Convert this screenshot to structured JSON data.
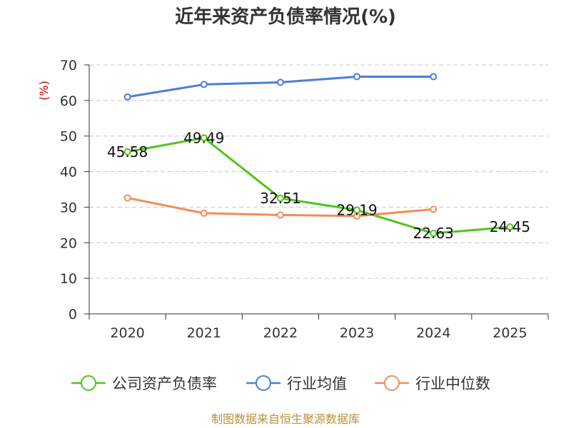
{
  "chart_data": {
    "type": "line",
    "title": "近年来资产负债率情况(%)",
    "ylabel": "(%)",
    "xlabel": "",
    "categories": [
      "2020",
      "2021",
      "2022",
      "2023",
      "2024",
      "2025"
    ],
    "ylim": [
      0,
      70
    ],
    "yticks": [
      "0",
      "10",
      "20",
      "30",
      "40",
      "50",
      "60",
      "70"
    ],
    "grid": true,
    "legend_position": "bottom",
    "series": [
      {
        "name": "公司资产负债率",
        "color": "#52c41a",
        "values": [
          45.58,
          49.49,
          32.51,
          29.19,
          22.63,
          24.45
        ],
        "labels": [
          "45.58",
          "49.49",
          "32.51",
          "29.19",
          "22.63",
          "24.45"
        ]
      },
      {
        "name": "行业均值",
        "color": "#4a7fd9",
        "values": [
          61.0,
          64.5,
          65.1,
          66.7,
          66.7,
          null
        ]
      },
      {
        "name": "行业中位数",
        "color": "#f28c5a",
        "values": [
          32.6,
          28.3,
          27.8,
          27.5,
          29.4,
          null
        ]
      }
    ],
    "source": "制图数据来自恒生聚源数据库"
  }
}
